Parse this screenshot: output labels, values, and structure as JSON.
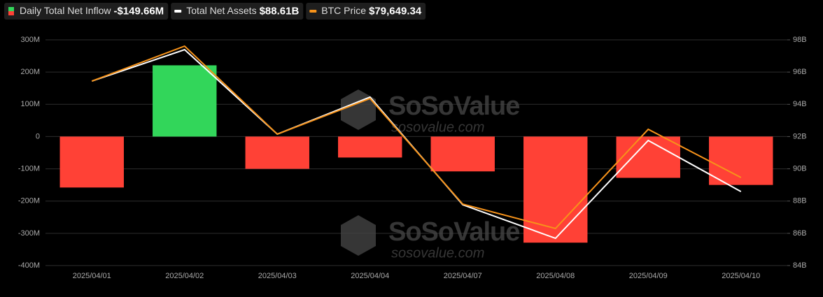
{
  "chart_data": {
    "type": "bar",
    "legend": [
      {
        "name": "Daily Total Net Inflow",
        "value": "-$149.66M",
        "color": "#ff4136"
      },
      {
        "name": "Total Net Assets",
        "value": "$88.61B",
        "color": "#ffffff"
      },
      {
        "name": "BTC Price",
        "value": "$79,649.34",
        "color": "#f7931a"
      }
    ],
    "watermark": {
      "brand": "SoSoValue",
      "site": "sosovalue.com"
    },
    "categories": [
      "2025/04/01",
      "2025/04/02",
      "2025/04/03",
      "2025/04/04",
      "2025/04/07",
      "2025/04/08",
      "2025/04/09",
      "2025/04/10"
    ],
    "series": [
      {
        "name": "Daily Total Net Inflow",
        "type": "bar",
        "positive_color": "#32d65a",
        "negative_color": "#ff4136",
        "values": [
          -158,
          221,
          -100,
          -65,
          -108,
          -329,
          -128,
          -150
        ]
      },
      {
        "name": "Total Net Assets",
        "type": "line",
        "axis": "y2",
        "color": "#ffffff",
        "values": [
          95.44,
          97.39,
          92.15,
          94.45,
          87.77,
          85.69,
          91.76,
          88.59
        ]
      },
      {
        "name": "BTC Price",
        "type": "line",
        "axis": "y2",
        "color": "#f7931a",
        "values": [
          95.44,
          97.61,
          92.15,
          94.36,
          87.81,
          86.3,
          92.45,
          89.46
        ]
      }
    ],
    "ylim": [
      -400,
      300
    ],
    "yticks": [
      {
        "value": -400,
        "label": "-400M"
      },
      {
        "value": -300,
        "label": "-300M"
      },
      {
        "value": -200,
        "label": "-200M"
      },
      {
        "value": -100,
        "label": "-100M"
      },
      0,
      {
        "value": 100,
        "label": "100M"
      },
      {
        "value": 200,
        "label": "200M"
      },
      {
        "value": 300,
        "label": "300M"
      }
    ],
    "y2lim": [
      84,
      98
    ],
    "y2ticks": [
      {
        "value": 84,
        "label": "84B"
      },
      {
        "value": 86,
        "label": "86B"
      },
      {
        "value": 88,
        "label": "88B"
      },
      {
        "value": 90,
        "label": "90B"
      },
      {
        "value": 92,
        "label": "92B"
      },
      {
        "value": 94,
        "label": "94B"
      },
      {
        "value": 96,
        "label": "96B"
      },
      {
        "value": 98,
        "label": "98B"
      }
    ],
    "grid": true
  }
}
